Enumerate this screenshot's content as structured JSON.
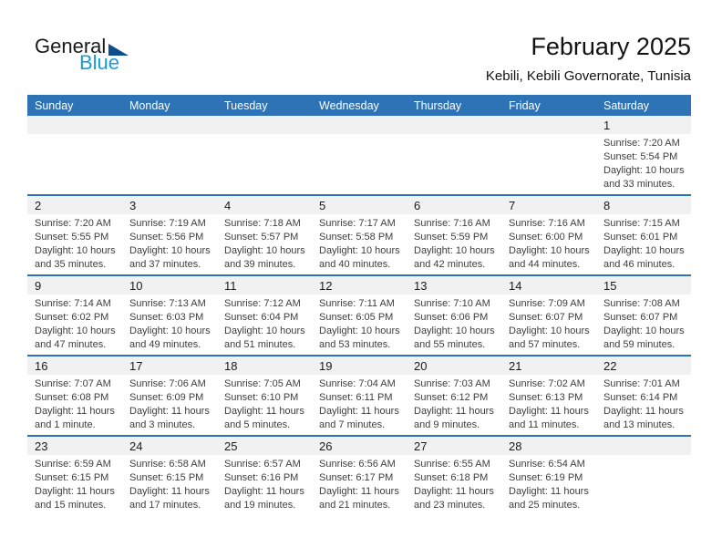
{
  "logo": {
    "general": "General",
    "blue": "Blue"
  },
  "header": {
    "title": "February 2025",
    "subtitle": "Kebili, Kebili Governorate, Tunisia"
  },
  "colors": {
    "header_bar": "#2e73b5",
    "week_divider": "#2e73b5",
    "date_stripe": "#f1f1f1",
    "logo_triangle": "#0d4e8c",
    "logo_blue_text": "#1d9bd8",
    "body_text": "#3d3d3d"
  },
  "calendar": {
    "day_headers": [
      "Sunday",
      "Monday",
      "Tuesday",
      "Wednesday",
      "Thursday",
      "Friday",
      "Saturday"
    ],
    "weeks": [
      {
        "days": [
          {
            "date": "",
            "lines": []
          },
          {
            "date": "",
            "lines": []
          },
          {
            "date": "",
            "lines": []
          },
          {
            "date": "",
            "lines": []
          },
          {
            "date": "",
            "lines": []
          },
          {
            "date": "",
            "lines": []
          },
          {
            "date": "1",
            "lines": [
              "Sunrise: 7:20 AM",
              "Sunset: 5:54 PM",
              "Daylight: 10 hours and 33 minutes."
            ]
          }
        ]
      },
      {
        "days": [
          {
            "date": "2",
            "lines": [
              "Sunrise: 7:20 AM",
              "Sunset: 5:55 PM",
              "Daylight: 10 hours and 35 minutes."
            ]
          },
          {
            "date": "3",
            "lines": [
              "Sunrise: 7:19 AM",
              "Sunset: 5:56 PM",
              "Daylight: 10 hours and 37 minutes."
            ]
          },
          {
            "date": "4",
            "lines": [
              "Sunrise: 7:18 AM",
              "Sunset: 5:57 PM",
              "Daylight: 10 hours and 39 minutes."
            ]
          },
          {
            "date": "5",
            "lines": [
              "Sunrise: 7:17 AM",
              "Sunset: 5:58 PM",
              "Daylight: 10 hours and 40 minutes."
            ]
          },
          {
            "date": "6",
            "lines": [
              "Sunrise: 7:16 AM",
              "Sunset: 5:59 PM",
              "Daylight: 10 hours and 42 minutes."
            ]
          },
          {
            "date": "7",
            "lines": [
              "Sunrise: 7:16 AM",
              "Sunset: 6:00 PM",
              "Daylight: 10 hours and 44 minutes."
            ]
          },
          {
            "date": "8",
            "lines": [
              "Sunrise: 7:15 AM",
              "Sunset: 6:01 PM",
              "Daylight: 10 hours and 46 minutes."
            ]
          }
        ]
      },
      {
        "days": [
          {
            "date": "9",
            "lines": [
              "Sunrise: 7:14 AM",
              "Sunset: 6:02 PM",
              "Daylight: 10 hours and 47 minutes."
            ]
          },
          {
            "date": "10",
            "lines": [
              "Sunrise: 7:13 AM",
              "Sunset: 6:03 PM",
              "Daylight: 10 hours and 49 minutes."
            ]
          },
          {
            "date": "11",
            "lines": [
              "Sunrise: 7:12 AM",
              "Sunset: 6:04 PM",
              "Daylight: 10 hours and 51 minutes."
            ]
          },
          {
            "date": "12",
            "lines": [
              "Sunrise: 7:11 AM",
              "Sunset: 6:05 PM",
              "Daylight: 10 hours and 53 minutes."
            ]
          },
          {
            "date": "13",
            "lines": [
              "Sunrise: 7:10 AM",
              "Sunset: 6:06 PM",
              "Daylight: 10 hours and 55 minutes."
            ]
          },
          {
            "date": "14",
            "lines": [
              "Sunrise: 7:09 AM",
              "Sunset: 6:07 PM",
              "Daylight: 10 hours and 57 minutes."
            ]
          },
          {
            "date": "15",
            "lines": [
              "Sunrise: 7:08 AM",
              "Sunset: 6:07 PM",
              "Daylight: 10 hours and 59 minutes."
            ]
          }
        ]
      },
      {
        "days": [
          {
            "date": "16",
            "lines": [
              "Sunrise: 7:07 AM",
              "Sunset: 6:08 PM",
              "Daylight: 11 hours and 1 minute."
            ]
          },
          {
            "date": "17",
            "lines": [
              "Sunrise: 7:06 AM",
              "Sunset: 6:09 PM",
              "Daylight: 11 hours and 3 minutes."
            ]
          },
          {
            "date": "18",
            "lines": [
              "Sunrise: 7:05 AM",
              "Sunset: 6:10 PM",
              "Daylight: 11 hours and 5 minutes."
            ]
          },
          {
            "date": "19",
            "lines": [
              "Sunrise: 7:04 AM",
              "Sunset: 6:11 PM",
              "Daylight: 11 hours and 7 minutes."
            ]
          },
          {
            "date": "20",
            "lines": [
              "Sunrise: 7:03 AM",
              "Sunset: 6:12 PM",
              "Daylight: 11 hours and 9 minutes."
            ]
          },
          {
            "date": "21",
            "lines": [
              "Sunrise: 7:02 AM",
              "Sunset: 6:13 PM",
              "Daylight: 11 hours and 11 minutes."
            ]
          },
          {
            "date": "22",
            "lines": [
              "Sunrise: 7:01 AM",
              "Sunset: 6:14 PM",
              "Daylight: 11 hours and 13 minutes."
            ]
          }
        ]
      },
      {
        "days": [
          {
            "date": "23",
            "lines": [
              "Sunrise: 6:59 AM",
              "Sunset: 6:15 PM",
              "Daylight: 11 hours and 15 minutes."
            ]
          },
          {
            "date": "24",
            "lines": [
              "Sunrise: 6:58 AM",
              "Sunset: 6:15 PM",
              "Daylight: 11 hours and 17 minutes."
            ]
          },
          {
            "date": "25",
            "lines": [
              "Sunrise: 6:57 AM",
              "Sunset: 6:16 PM",
              "Daylight: 11 hours and 19 minutes."
            ]
          },
          {
            "date": "26",
            "lines": [
              "Sunrise: 6:56 AM",
              "Sunset: 6:17 PM",
              "Daylight: 11 hours and 21 minutes."
            ]
          },
          {
            "date": "27",
            "lines": [
              "Sunrise: 6:55 AM",
              "Sunset: 6:18 PM",
              "Daylight: 11 hours and 23 minutes."
            ]
          },
          {
            "date": "28",
            "lines": [
              "Sunrise: 6:54 AM",
              "Sunset: 6:19 PM",
              "Daylight: 11 hours and 25 minutes."
            ]
          },
          {
            "date": "",
            "lines": []
          }
        ]
      }
    ]
  }
}
